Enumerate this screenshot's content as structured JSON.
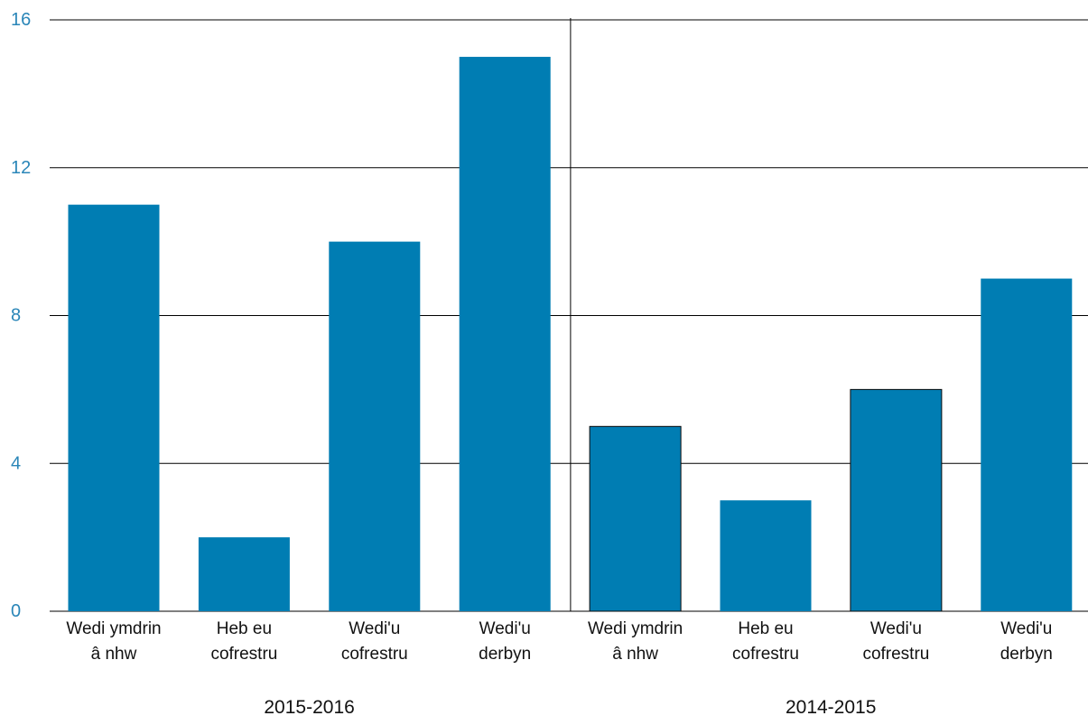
{
  "chart_data": {
    "type": "bar",
    "title": "",
    "xlabel": "",
    "ylabel": "",
    "ylim": [
      0,
      16
    ],
    "yticks": [
      0,
      4,
      8,
      12,
      16
    ],
    "grid": true,
    "bar_color": "#007db3",
    "ytick_color": "#2a86b8",
    "groups": [
      {
        "label": "2015-2016",
        "categories": [
          [
            "Wedi ymdrin",
            "â nhw"
          ],
          [
            "Heb eu",
            "cofrestru"
          ],
          [
            "Wedi'u",
            "cofrestru"
          ],
          [
            "Wedi'u",
            "derbyn"
          ]
        ],
        "values": [
          11,
          2,
          10,
          15
        ]
      },
      {
        "label": "2014-2015",
        "categories": [
          [
            "Wedi ymdrin",
            "â nhw"
          ],
          [
            "Heb eu",
            "cofrestru"
          ],
          [
            "Wedi'u",
            "cofrestru"
          ],
          [
            "Wedi'u",
            "derbyn"
          ]
        ],
        "values": [
          5,
          3,
          6,
          9
        ]
      }
    ]
  }
}
